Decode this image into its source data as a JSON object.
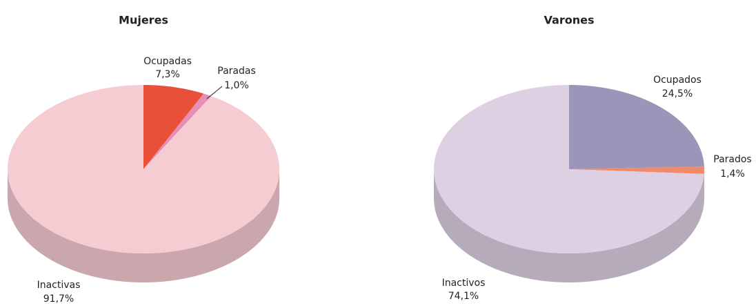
{
  "chart_data": [
    {
      "type": "pie",
      "title": "Mujeres",
      "categories": [
        "Ocupadas",
        "Paradas",
        "Inactivas"
      ],
      "values": [
        7.3,
        1.0,
        91.7
      ],
      "value_labels": [
        "7,3%",
        "1,0%",
        "91,7%"
      ],
      "colors": [
        "#e8503a",
        "#e58fb5",
        "#f6ccd3"
      ]
    },
    {
      "type": "pie",
      "title": "Varones",
      "categories": [
        "Ocupados",
        "Parados",
        "Inactivos"
      ],
      "values": [
        24.5,
        1.4,
        74.1
      ],
      "value_labels": [
        "24,5%",
        "1,4%",
        "74,1%"
      ],
      "colors": [
        "#9b95ba",
        "#ef8a6a",
        "#ddd0e3"
      ]
    }
  ]
}
